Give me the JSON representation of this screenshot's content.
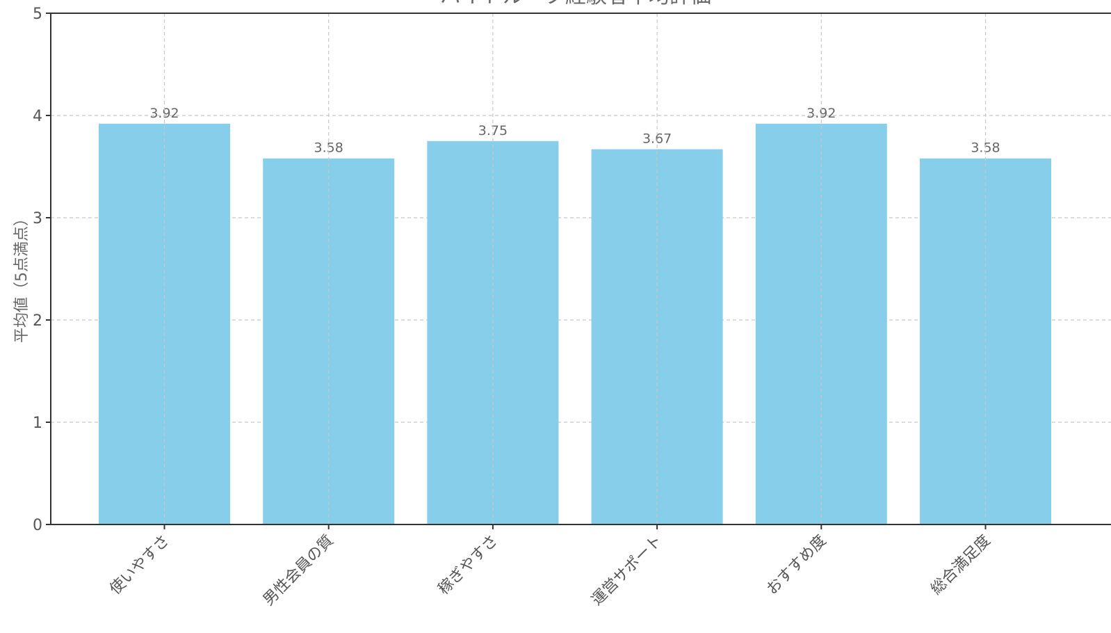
{
  "chart_data": {
    "type": "bar",
    "title": "バイトルーク経験者平均評価",
    "ylabel": "平均値（5点満点）",
    "xlabel": "",
    "categories": [
      "使いやすさ",
      "男性会員の質",
      "稼ぎやすさ",
      "運営サポート",
      "おすすめ度",
      "総合満足度"
    ],
    "values": [
      3.92,
      3.58,
      3.75,
      3.67,
      3.92,
      3.58
    ],
    "value_labels": [
      "3.92",
      "3.58",
      "3.75",
      "3.67",
      "3.92",
      "3.58"
    ],
    "yticks": [
      "0",
      "1",
      "2",
      "3",
      "4",
      "5"
    ],
    "ylim": [
      0,
      5
    ],
    "grid": true,
    "bar_color": "#87CEEB"
  }
}
